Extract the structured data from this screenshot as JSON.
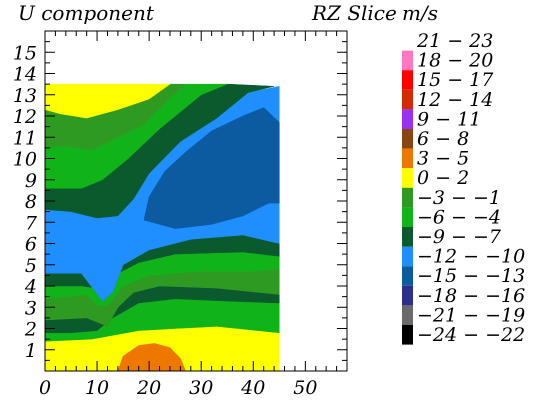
{
  "header": {
    "left_title": "U component",
    "slice_title": "RZ Slice",
    "units": "m/s"
  },
  "chart_data": {
    "type": "heatmap",
    "title": "U component",
    "subtitle": "RZ Slice",
    "units": "m/s",
    "xlim": [
      0,
      58
    ],
    "ylim": [
      0,
      16
    ],
    "x_ticks": [
      "0",
      "10",
      "20",
      "30",
      "40",
      "50"
    ],
    "y_ticks": [
      "1",
      "2",
      "3",
      "4",
      "5",
      "6",
      "7",
      "8",
      "9",
      "10",
      "11",
      "12",
      "13",
      "14",
      "15"
    ],
    "data_extent": {
      "x": [
        0,
        45
      ],
      "y": [
        0,
        13.5
      ]
    },
    "legend": [
      {
        "label": "21 − 23",
        "color": "#ffffff"
      },
      {
        "label": "18 − 20",
        "color": "#ff77c0"
      },
      {
        "label": "15 − 17",
        "color": "#ff0000"
      },
      {
        "label": "12 − 14",
        "color": "#d22b00"
      },
      {
        "label": "9 − 11",
        "color": "#9a30f2"
      },
      {
        "label": "6 − 8",
        "color": "#8b4513"
      },
      {
        "label": "3 − 5",
        "color": "#ee7700"
      },
      {
        "label": "0 − 2",
        "color": "#ffff00"
      },
      {
        "label": "−3 − −1",
        "color": "#2e9a22"
      },
      {
        "label": "−6 − −4",
        "color": "#11b418"
      },
      {
        "label": "−9 − −7",
        "color": "#0a5a2e"
      },
      {
        "label": "−12 − −10",
        "color": "#1f8fff"
      },
      {
        "label": "−15 − −13",
        "color": "#0c5aa0"
      },
      {
        "label": "−18 − −16",
        "color": "#2b2e8c"
      },
      {
        "label": "−21 − −19",
        "color": "#6a6a6a"
      },
      {
        "label": "−24 − −22",
        "color": "#000000"
      }
    ],
    "regions": [
      {
        "name": "yellow-low",
        "color": "#ffff00",
        "points": [
          [
            0,
            0
          ],
          [
            45,
            0
          ],
          [
            45,
            1.8
          ],
          [
            33,
            2.1
          ],
          [
            25,
            2.0
          ],
          [
            18,
            1.9
          ],
          [
            9,
            1.5
          ],
          [
            0,
            1.4
          ]
        ]
      },
      {
        "name": "orange-core",
        "color": "#ee7700",
        "points": [
          [
            14,
            0
          ],
          [
            27,
            0
          ],
          [
            26,
            0.6
          ],
          [
            24,
            1.1
          ],
          [
            21,
            1.3
          ],
          [
            18,
            1.2
          ],
          [
            15,
            0.7
          ]
        ]
      },
      {
        "name": "green-low",
        "color": "#11b418",
        "points": [
          [
            0,
            1.4
          ],
          [
            9,
            1.5
          ],
          [
            18,
            1.9
          ],
          [
            25,
            2.0
          ],
          [
            33,
            2.1
          ],
          [
            45,
            1.8
          ],
          [
            45,
            3.2
          ],
          [
            34,
            3.3
          ],
          [
            25,
            3.4
          ],
          [
            18,
            3.2
          ],
          [
            13,
            2.5
          ],
          [
            10,
            1.9
          ],
          [
            5,
            1.8
          ],
          [
            0,
            1.8
          ]
        ]
      },
      {
        "name": "dark-low",
        "color": "#0a5a2e",
        "points": [
          [
            0,
            1.8
          ],
          [
            5,
            1.8
          ],
          [
            10,
            1.9
          ],
          [
            13,
            2.5
          ],
          [
            18,
            3.2
          ],
          [
            25,
            3.4
          ],
          [
            34,
            3.3
          ],
          [
            45,
            3.2
          ],
          [
            45,
            3.6
          ],
          [
            33,
            3.9
          ],
          [
            22,
            4.0
          ],
          [
            17,
            3.7
          ],
          [
            14,
            3.0
          ],
          [
            12,
            2.1
          ],
          [
            8,
            2.5
          ],
          [
            0,
            2.4
          ]
        ]
      },
      {
        "name": "olive-low",
        "color": "#2e9a22",
        "points": [
          [
            0,
            2.4
          ],
          [
            8,
            2.5
          ],
          [
            12,
            2.1
          ],
          [
            14,
            3.0
          ],
          [
            17,
            3.7
          ],
          [
            22,
            4.0
          ],
          [
            33,
            3.9
          ],
          [
            45,
            3.6
          ],
          [
            45,
            4.8
          ],
          [
            40,
            4.7
          ],
          [
            30,
            4.7
          ],
          [
            20,
            4.5
          ],
          [
            15,
            4.0
          ],
          [
            12,
            3.1
          ],
          [
            10,
            3.1
          ],
          [
            8,
            3.6
          ],
          [
            0,
            3.4
          ]
        ]
      },
      {
        "name": "green-mid",
        "color": "#11b418",
        "points": [
          [
            0,
            3.4
          ],
          [
            8,
            3.6
          ],
          [
            10,
            3.1
          ],
          [
            12,
            3.1
          ],
          [
            15,
            4.0
          ],
          [
            20,
            4.5
          ],
          [
            30,
            4.7
          ],
          [
            40,
            4.7
          ],
          [
            45,
            4.8
          ],
          [
            45,
            5.4
          ],
          [
            38,
            5.6
          ],
          [
            25,
            5.5
          ],
          [
            18,
            5.1
          ],
          [
            14,
            4.6
          ],
          [
            12,
            4.0
          ],
          [
            10,
            3.9
          ],
          [
            7,
            4.0
          ],
          [
            0,
            4.0
          ]
        ]
      },
      {
        "name": "dark-mid",
        "color": "#0a5a2e",
        "points": [
          [
            0,
            4.0
          ],
          [
            7,
            4.0
          ],
          [
            10,
            3.9
          ],
          [
            12,
            4.0
          ],
          [
            14,
            4.6
          ],
          [
            18,
            5.1
          ],
          [
            25,
            5.5
          ],
          [
            38,
            5.6
          ],
          [
            45,
            5.4
          ],
          [
            45,
            6.0
          ],
          [
            38,
            6.4
          ],
          [
            28,
            6.2
          ],
          [
            20,
            5.7
          ],
          [
            15,
            5.0
          ],
          [
            13,
            3.7
          ],
          [
            11,
            3.3
          ],
          [
            7,
            4.6
          ],
          [
            0,
            4.6
          ]
        ]
      },
      {
        "name": "blue-band",
        "color": "#1f8fff",
        "points": [
          [
            0,
            4.6
          ],
          [
            7,
            4.6
          ],
          [
            11,
            3.3
          ],
          [
            13,
            3.7
          ],
          [
            15,
            5.0
          ],
          [
            20,
            5.7
          ],
          [
            28,
            6.2
          ],
          [
            38,
            6.4
          ],
          [
            45,
            6.0
          ],
          [
            45,
            13.4
          ],
          [
            39,
            13.1
          ],
          [
            33,
            11.9
          ],
          [
            26,
            10.8
          ],
          [
            20,
            9.3
          ],
          [
            17,
            8.1
          ],
          [
            14,
            7.3
          ],
          [
            10,
            7.2
          ],
          [
            5,
            7.5
          ],
          [
            0,
            7.6
          ]
        ]
      },
      {
        "name": "navy-pocket",
        "color": "#0c5aa0",
        "points": [
          [
            19,
            7.1
          ],
          [
            25,
            6.7
          ],
          [
            32,
            6.9
          ],
          [
            38,
            7.3
          ],
          [
            43,
            7.9
          ],
          [
            45,
            7.9
          ],
          [
            45,
            11.7
          ],
          [
            42,
            12.4
          ],
          [
            38,
            12.0
          ],
          [
            32,
            11.3
          ],
          [
            27,
            10.3
          ],
          [
            23,
            9.4
          ],
          [
            20,
            8.2
          ]
        ]
      },
      {
        "name": "dark-upper",
        "color": "#0a5a2e",
        "points": [
          [
            0,
            7.6
          ],
          [
            5,
            7.5
          ],
          [
            10,
            7.2
          ],
          [
            14,
            7.3
          ],
          [
            17,
            8.1
          ],
          [
            20,
            9.3
          ],
          [
            26,
            10.8
          ],
          [
            33,
            11.9
          ],
          [
            39,
            13.1
          ],
          [
            44,
            13.4
          ],
          [
            35,
            13.5
          ],
          [
            30,
            13.0
          ],
          [
            22,
            11.4
          ],
          [
            16,
            10.0
          ],
          [
            11,
            9.0
          ],
          [
            7,
            8.6
          ],
          [
            0,
            8.6
          ]
        ]
      },
      {
        "name": "green-upper",
        "color": "#11b418",
        "points": [
          [
            0,
            8.6
          ],
          [
            7,
            8.6
          ],
          [
            11,
            9.0
          ],
          [
            16,
            10.0
          ],
          [
            22,
            11.4
          ],
          [
            30,
            13.0
          ],
          [
            35,
            13.5
          ],
          [
            27,
            13.5
          ],
          [
            23,
            12.6
          ],
          [
            19,
            11.6
          ],
          [
            14,
            11.0
          ],
          [
            9,
            10.4
          ],
          [
            4,
            10.6
          ],
          [
            0,
            10.5
          ]
        ]
      },
      {
        "name": "olive-upper",
        "color": "#2e9a22",
        "points": [
          [
            0,
            10.5
          ],
          [
            4,
            10.6
          ],
          [
            9,
            10.4
          ],
          [
            14,
            11.0
          ],
          [
            19,
            11.6
          ],
          [
            23,
            12.6
          ],
          [
            27,
            13.5
          ],
          [
            24,
            13.5
          ],
          [
            20,
            12.8
          ],
          [
            14,
            12.3
          ],
          [
            8,
            11.9
          ],
          [
            3,
            12.1
          ],
          [
            0,
            12.3
          ]
        ]
      },
      {
        "name": "yellow-top",
        "color": "#ffff00",
        "points": [
          [
            0,
            12.3
          ],
          [
            3,
            12.1
          ],
          [
            8,
            11.9
          ],
          [
            14,
            12.3
          ],
          [
            20,
            12.8
          ],
          [
            24,
            13.5
          ],
          [
            0,
            13.5
          ]
        ]
      }
    ]
  }
}
